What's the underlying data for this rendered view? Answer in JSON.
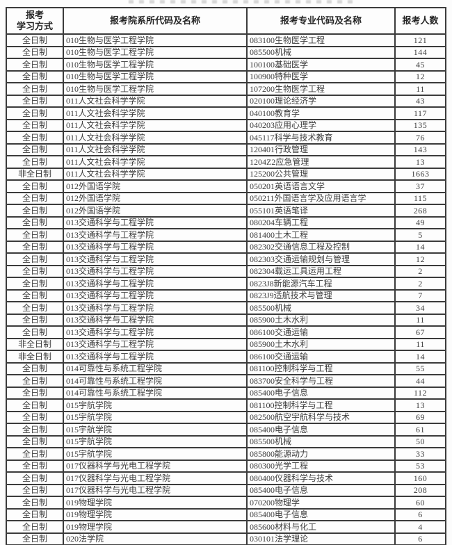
{
  "colors": {
    "border": "#3b3b3b",
    "text": "#3d3d3d",
    "header_text": "#252525",
    "background": "#fcfcfc"
  },
  "header": {
    "mode_line1": "报考",
    "mode_line2": "学习方式",
    "dept": "报考院系所代码及名称",
    "major": "报考专业代码及名称",
    "count": "报考人数"
  },
  "table": {
    "rows": [
      {
        "mode": "全日制",
        "dept": "010生物与医学工程学院",
        "major": "083100生物医学工程",
        "count": "121"
      },
      {
        "mode": "全日制",
        "dept": "010生物与医学工程学院",
        "major": "085500机械",
        "count": "144"
      },
      {
        "mode": "全日制",
        "dept": "010生物与医学工程学院",
        "major": "100100基础医学",
        "count": "45"
      },
      {
        "mode": "全日制",
        "dept": "010生物与医学工程学院",
        "major": "100900特种医学",
        "count": "12"
      },
      {
        "mode": "全日制",
        "dept": "010生物与医学工程学院",
        "major": "107200生物医学工程",
        "count": "11"
      },
      {
        "mode": "全日制",
        "dept": "011人文社会科学学院",
        "major": "020100理论经济学",
        "count": "43"
      },
      {
        "mode": "全日制",
        "dept": "011人文社会科学学院",
        "major": "040100教育学",
        "count": "117"
      },
      {
        "mode": "全日制",
        "dept": "011人文社会科学学院",
        "major": "040203应用心理学",
        "count": "135"
      },
      {
        "mode": "全日制",
        "dept": "011人文社会科学学院",
        "major": "045117科学与技术教育",
        "count": "76"
      },
      {
        "mode": "全日制",
        "dept": "011人文社会科学学院",
        "major": "120401行政管理",
        "count": "143"
      },
      {
        "mode": "全日制",
        "dept": "011人文社会科学学院",
        "major": "1204Z2应急管理",
        "count": "13"
      },
      {
        "mode": "非全日制",
        "dept": "011人文社会科学学院",
        "major": "125200公共管理",
        "count": "1663"
      },
      {
        "mode": "全日制",
        "dept": "012外国语学院",
        "major": "050201英语语言文学",
        "count": "37"
      },
      {
        "mode": "全日制",
        "dept": "012外国语学院",
        "major": "050211外国语言学及应用语言学",
        "count": "115"
      },
      {
        "mode": "全日制",
        "dept": "012外国语学院",
        "major": "055101英语笔译",
        "count": "268"
      },
      {
        "mode": "全日制",
        "dept": "013交通科学与工程学院",
        "major": "080204车辆工程",
        "count": "49"
      },
      {
        "mode": "全日制",
        "dept": "013交通科学与工程学院",
        "major": "081400土木工程",
        "count": "5"
      },
      {
        "mode": "全日制",
        "dept": "013交通科学与工程学院",
        "major": "082302交通信息工程及控制",
        "count": "14"
      },
      {
        "mode": "全日制",
        "dept": "013交通科学与工程学院",
        "major": "082303交通运输规划与管理",
        "count": "12"
      },
      {
        "mode": "全日制",
        "dept": "013交通科学与工程学院",
        "major": "082304载运工具运用工程",
        "count": "2"
      },
      {
        "mode": "全日制",
        "dept": "013交通科学与工程学院",
        "major": "0823J8新能源汽车工程",
        "count": "2"
      },
      {
        "mode": "全日制",
        "dept": "013交通科学与工程学院",
        "major": "0823J9适航技术与管理",
        "count": "7"
      },
      {
        "mode": "全日制",
        "dept": "013交通科学与工程学院",
        "major": "085500机械",
        "count": "34"
      },
      {
        "mode": "全日制",
        "dept": "013交通科学与工程学院",
        "major": "085900土木水利",
        "count": "11"
      },
      {
        "mode": "全日制",
        "dept": "013交通科学与工程学院",
        "major": "086100交通运输",
        "count": "67"
      },
      {
        "mode": "非全日制",
        "dept": "013交通科学与工程学院",
        "major": "085900土木水利",
        "count": "11"
      },
      {
        "mode": "非全日制",
        "dept": "013交通科学与工程学院",
        "major": "086100交通运输",
        "count": "14"
      },
      {
        "mode": "全日制",
        "dept": "014可靠性与系统工程学院",
        "major": "081100控制科学与工程",
        "count": "55"
      },
      {
        "mode": "全日制",
        "dept": "014可靠性与系统工程学院",
        "major": "083700安全科学与工程",
        "count": "44"
      },
      {
        "mode": "全日制",
        "dept": "014可靠性与系统工程学院",
        "major": "085400电子信息",
        "count": "112"
      },
      {
        "mode": "全日制",
        "dept": "015宇航学院",
        "major": "081100控制科学与工程",
        "count": "13"
      },
      {
        "mode": "全日制",
        "dept": "015宇航学院",
        "major": "082500航空宇航科学与技术",
        "count": "69"
      },
      {
        "mode": "全日制",
        "dept": "015宇航学院",
        "major": "085400电子信息",
        "count": "61"
      },
      {
        "mode": "全日制",
        "dept": "015宇航学院",
        "major": "085500机械",
        "count": "50"
      },
      {
        "mode": "全日制",
        "dept": "015宇航学院",
        "major": "085800能源动力",
        "count": "33"
      },
      {
        "mode": "全日制",
        "dept": "017仪器科学与光电工程学院",
        "major": "080300光学工程",
        "count": "53"
      },
      {
        "mode": "全日制",
        "dept": "017仪器科学与光电工程学院",
        "major": "080400仪器科学与技术",
        "count": "160"
      },
      {
        "mode": "全日制",
        "dept": "017仪器科学与光电工程学院",
        "major": "085400电子信息",
        "count": "208"
      },
      {
        "mode": "全日制",
        "dept": "019物理学院",
        "major": "070200物理学",
        "count": "60"
      },
      {
        "mode": "全日制",
        "dept": "019物理学院",
        "major": "085400电子信息",
        "count": "6"
      },
      {
        "mode": "全日制",
        "dept": "019物理学院",
        "major": "085600材料与化工",
        "count": "4"
      },
      {
        "mode": "全日制",
        "dept": "020法学院",
        "major": "030101法学理论",
        "count": "6"
      }
    ]
  }
}
